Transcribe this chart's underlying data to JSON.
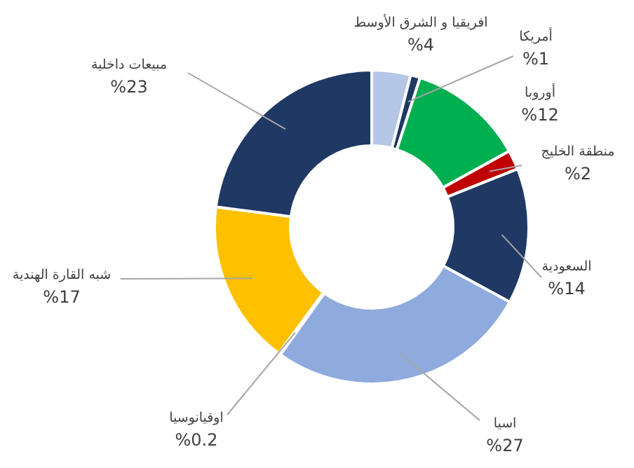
{
  "chart_data": {
    "type": "donut",
    "categories": [
      "افريقيا و الشرق الأوسط",
      "أمريكا",
      "أوروبا",
      "منطقة الخليج",
      "السعودية",
      "اسيا",
      "اوقيانوسيا",
      "شبه القارة الهندية",
      "مبيعات داخلية"
    ],
    "values": [
      4,
      1,
      12,
      2,
      14,
      27,
      0.2,
      17,
      23
    ],
    "colors": [
      "#b4c7e7",
      "#1f3864",
      "#00b050",
      "#c00000",
      "#1f3864",
      "#8faadc",
      "#1f3864",
      "#ffc000",
      "#1f3864"
    ],
    "value_labels": [
      "%4",
      "%1",
      "%12",
      "%2",
      "%14",
      "%27",
      "%0.2",
      "%17",
      "%23"
    ]
  }
}
